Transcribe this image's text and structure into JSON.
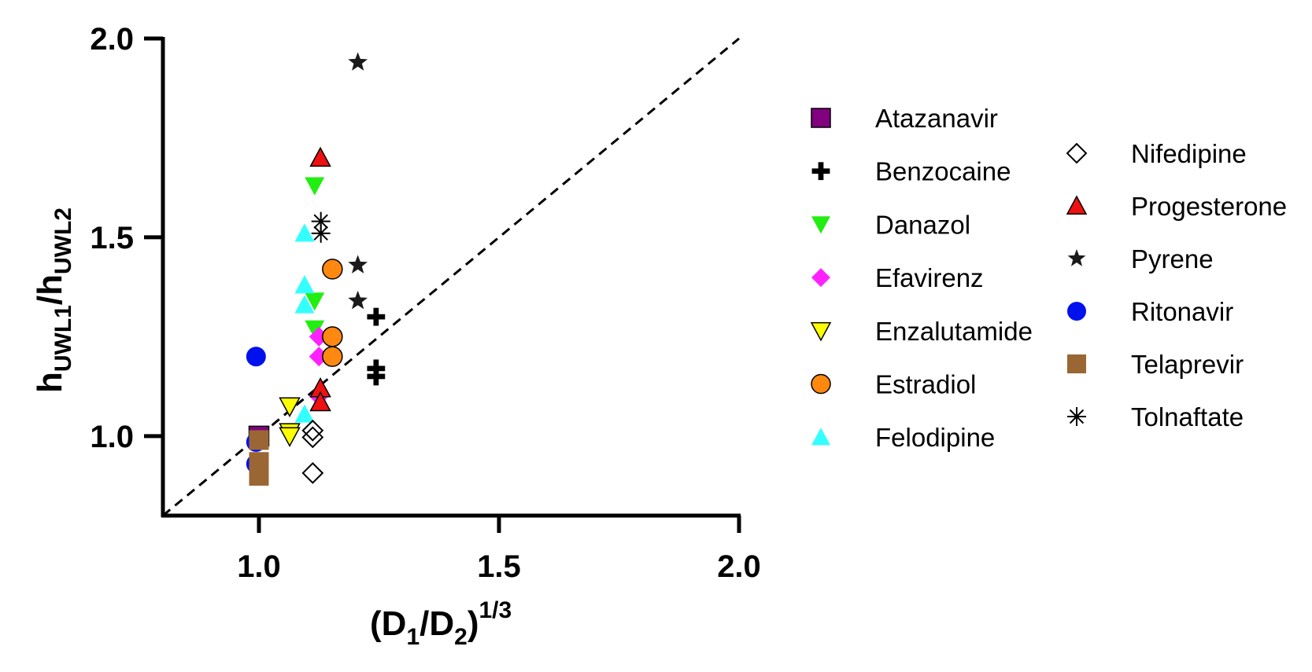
{
  "chart_data": {
    "type": "scatter",
    "title": "",
    "xlabel": {
      "main": "(D",
      "sub1": "1",
      "mid": "/D",
      "sub2": "2",
      "close": ")",
      "sup": "1/3"
    },
    "ylabel": {
      "main1": "h",
      "sub1": "UWL1",
      "mid": "/h",
      "sub2": "UWL2"
    },
    "xlim": [
      0.8,
      2.0
    ],
    "ylim": [
      0.8,
      2.0
    ],
    "xticks": [
      1.0,
      1.5,
      2.0
    ],
    "yticks": [
      1.0,
      1.5,
      2.0
    ],
    "xtick_labels": [
      "1.0",
      "1.5",
      "2.0"
    ],
    "ytick_labels": [
      "1.0",
      "1.5",
      "2.0"
    ],
    "grid": false,
    "reference_line": {
      "type": "identity",
      "style": "dashed",
      "from": [
        0.8,
        0.8
      ],
      "to": [
        2.0,
        2.0
      ]
    },
    "legend_placement": "right",
    "series": [
      {
        "name": "Atazanavir",
        "marker": "square",
        "color": "#800080",
        "stroke": "#000000",
        "points": [
          [
            1.0,
            1.0
          ]
        ]
      },
      {
        "name": "Benzocaine",
        "marker": "plus",
        "color": "#000000",
        "stroke": "#000000",
        "points": [
          [
            1.244,
            1.3
          ],
          [
            1.244,
            1.17
          ],
          [
            1.244,
            1.15
          ]
        ]
      },
      {
        "name": "Danazol",
        "marker": "triangle-down",
        "color": "#22ee11",
        "stroke": "none",
        "points": [
          [
            1.116,
            1.63
          ],
          [
            1.116,
            1.34
          ],
          [
            1.116,
            1.27
          ]
        ]
      },
      {
        "name": "Efavirenz",
        "marker": "diamond",
        "color": "#ff22ff",
        "stroke": "none",
        "points": [
          [
            1.125,
            1.25
          ],
          [
            1.125,
            1.2
          ],
          [
            1.125,
            1.1
          ]
        ]
      },
      {
        "name": "Enzalutamide",
        "marker": "triangle-down",
        "color": "#ffff00",
        "stroke": "#000000",
        "points": [
          [
            1.064,
            1.075
          ],
          [
            1.064,
            1.01
          ],
          [
            1.064,
            1.0
          ]
        ]
      },
      {
        "name": "Estradiol",
        "marker": "circle",
        "color": "#ff8811",
        "stroke": "#000000",
        "points": [
          [
            1.153,
            1.42
          ],
          [
            1.153,
            1.25
          ],
          [
            1.153,
            1.2
          ]
        ]
      },
      {
        "name": "Felodipine",
        "marker": "triangle-up",
        "color": "#33ffff",
        "stroke": "none",
        "points": [
          [
            1.095,
            1.51
          ],
          [
            1.095,
            1.38
          ],
          [
            1.095,
            1.33
          ],
          [
            1.095,
            1.055
          ]
        ]
      },
      {
        "name": "Nifedipine",
        "marker": "diamond-open",
        "color": "#ffffff",
        "stroke": "#000000",
        "points": [
          [
            1.112,
            1.014
          ],
          [
            1.112,
            0.997
          ],
          [
            1.112,
            0.907
          ]
        ]
      },
      {
        "name": "Progesterone",
        "marker": "triangle-up",
        "color": "#ee1111",
        "stroke": "#000000",
        "points": [
          [
            1.128,
            1.7
          ],
          [
            1.128,
            1.12
          ],
          [
            1.128,
            1.085
          ]
        ]
      },
      {
        "name": "Pyrene",
        "marker": "star",
        "color": "#1a1a1a",
        "stroke": "none",
        "points": [
          [
            1.206,
            1.94
          ],
          [
            1.206,
            1.43
          ],
          [
            1.206,
            1.34
          ]
        ]
      },
      {
        "name": "Ritonavir",
        "marker": "circle",
        "color": "#0011ee",
        "stroke": "none",
        "points": [
          [
            0.994,
            1.2
          ],
          [
            0.994,
            0.985
          ],
          [
            0.994,
            0.93
          ]
        ]
      },
      {
        "name": "Telaprevir",
        "marker": "square",
        "color": "#9a6634",
        "stroke": "none",
        "points": [
          [
            1.0,
            0.99
          ],
          [
            1.0,
            0.935
          ],
          [
            1.0,
            0.9
          ]
        ]
      },
      {
        "name": "Tolnaftate",
        "marker": "asterisk",
        "color": "#000000",
        "stroke": "#000000",
        "points": [
          [
            1.129,
            1.54
          ],
          [
            1.129,
            1.51
          ]
        ]
      }
    ]
  }
}
